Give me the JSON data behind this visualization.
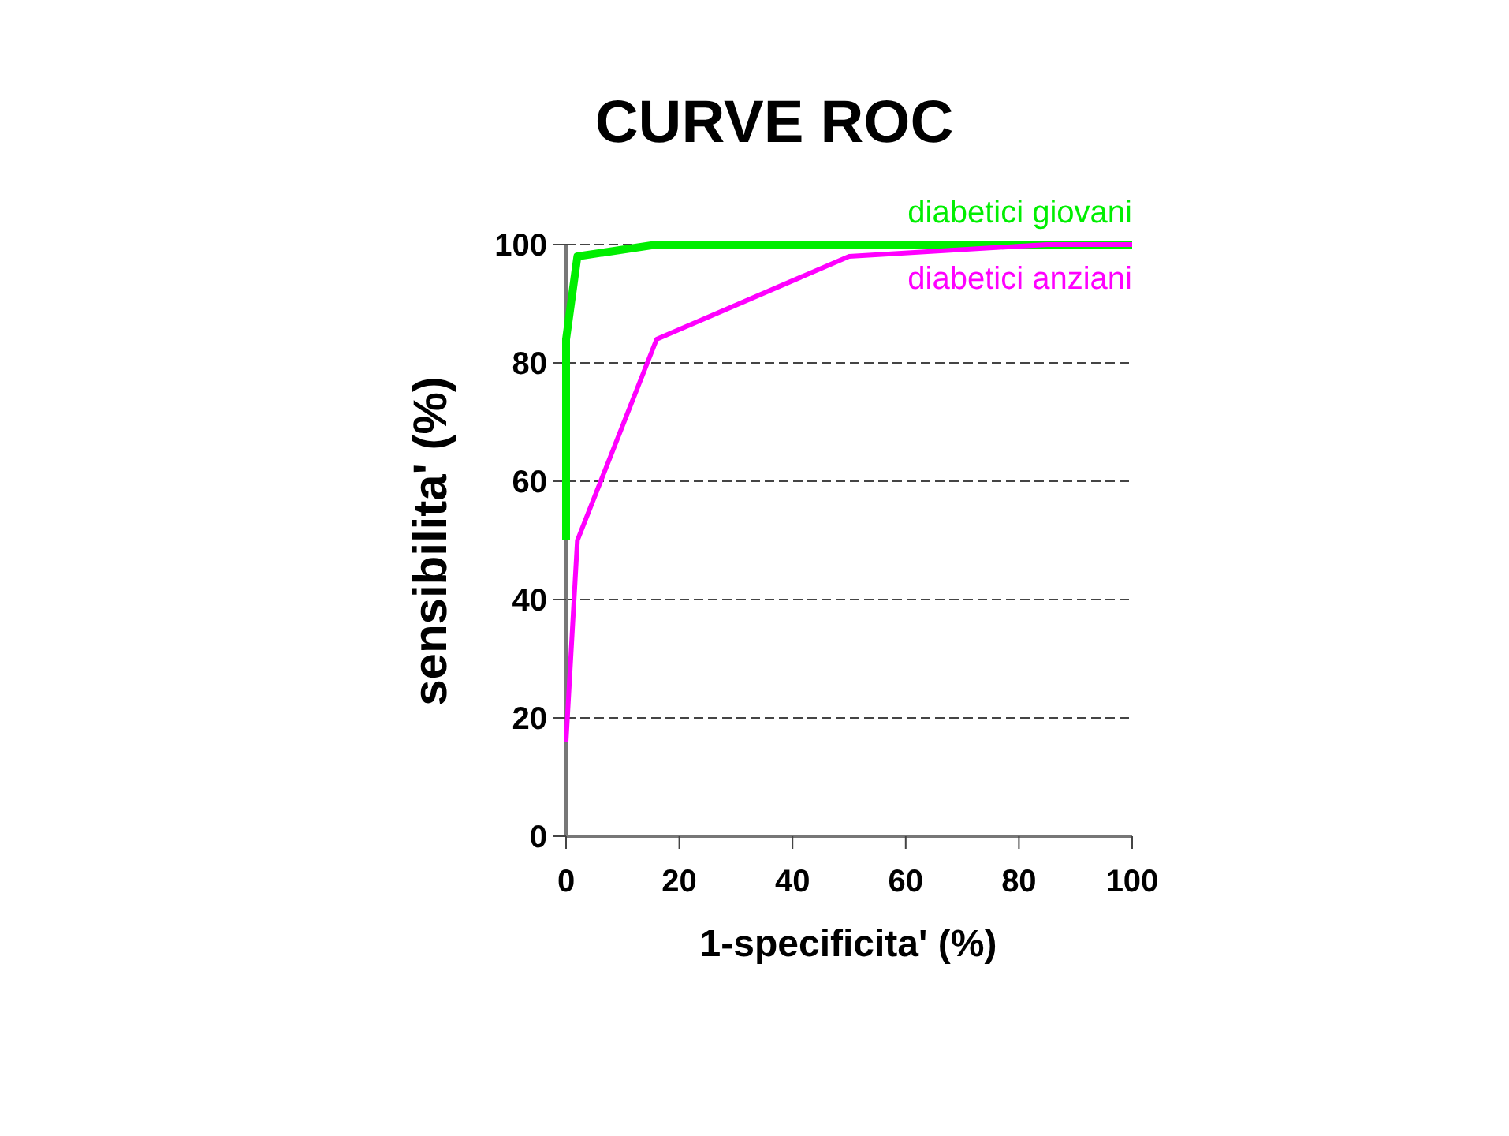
{
  "chart_data": {
    "type": "line",
    "title": "CURVE ROC",
    "xlabel": "1-specificita' (%)",
    "ylabel": "sensibilita' (%)",
    "xlim": [
      0,
      100
    ],
    "xticks": [
      0,
      20,
      40,
      60,
      80,
      100
    ],
    "ylim": [
      0,
      100
    ],
    "yticks": [
      0,
      20,
      40,
      60,
      80,
      100
    ],
    "grid": "y",
    "legend": false,
    "series": [
      {
        "name": "diabetici giovani",
        "color": "#00ee00",
        "x": [
          0,
          0,
          2,
          16,
          100
        ],
        "values": [
          50,
          84,
          98,
          100,
          100
        ]
      },
      {
        "name": "diabetici anziani",
        "color": "#ff00ff",
        "x": [
          0,
          2,
          16,
          50,
          85,
          100
        ],
        "values": [
          16,
          50,
          84,
          98,
          100,
          100
        ]
      }
    ]
  }
}
